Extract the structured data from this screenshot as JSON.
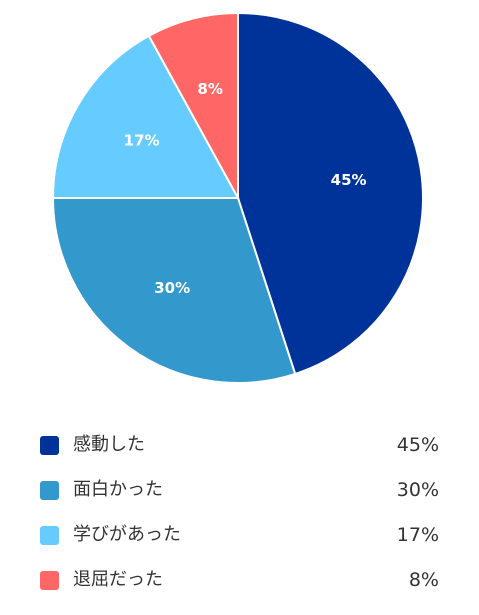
{
  "chart_data": {
    "type": "pie",
    "title": "",
    "slices": [
      {
        "label": "感動した",
        "value": 45,
        "display": "45%",
        "color": "#003399"
      },
      {
        "label": "面白かった",
        "value": 30,
        "display": "30%",
        "color": "#3399cc"
      },
      {
        "label": "学びがあった",
        "value": 17,
        "display": "17%",
        "color": "#66ccff"
      },
      {
        "label": "退屈だった",
        "value": 8,
        "display": "8%",
        "color": "#ff6666"
      }
    ],
    "legend_position": "bottom"
  }
}
